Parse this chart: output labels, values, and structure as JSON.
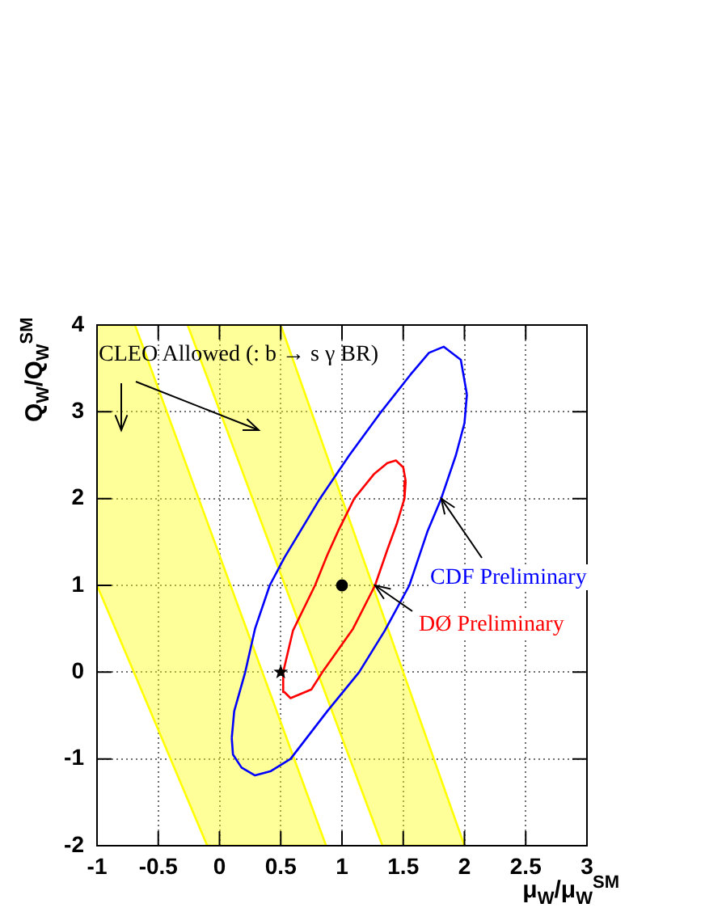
{
  "chart_data": {
    "type": "line",
    "xlabel": "μ$_{W}$/μ$_{W}$$^{SM}$",
    "ylabel": "Q$_{W}$/Q$_{W}$$^{SM}$",
    "xlim": [
      -1,
      3
    ],
    "ylim": [
      -2,
      4
    ],
    "xticks": [
      -1,
      -0.5,
      0,
      0.5,
      1,
      1.5,
      2,
      2.5,
      3
    ],
    "yticks": [
      -2,
      -1,
      0,
      1,
      2,
      3,
      4
    ],
    "grid": true,
    "annotations": [
      "CLEO Allowed (: b → s γ BR)"
    ],
    "series": [
      {
        "color": "#ffff00",
        "x": [
          -1,
          -0.69,
          -0.1,
          0.87
        ],
        "values": [
          4,
          4,
          1.73,
          -2
        ],
        "lower": [
          1,
          -0.03,
          -2,
          -2
        ],
        "upper": [
          4,
          4,
          1.73,
          -2
        ]
      },
      {
        "color": "#ffff00",
        "x": [
          -1,
          -0.69,
          -0.1,
          0.87
        ],
        "values": [
          1,
          -0.03,
          -2,
          -2
        ]
      },
      {
        "color": "#ffff00",
        "x": [
          -0.26,
          0.5,
          1.33,
          2
        ],
        "values": [
          4,
          4,
          0.68,
          -2
        ],
        "lower": [
          4,
          1.13,
          -2,
          -2
        ],
        "upper": [
          4,
          4,
          0.68,
          -2
        ]
      },
      {
        "color": "#ffff00",
        "x": [
          -0.26,
          0.5,
          1.33,
          2
        ],
        "values": [
          4,
          1.13,
          -2,
          -2
        ]
      },
      {
        "name": "CDF Preliminary",
        "color": "#0000ff",
        "x": [
          0.1,
          0.12,
          0.21,
          0.29,
          0.41,
          0.53,
          0.82,
          1.06,
          1.32,
          1.56,
          1.71,
          1.83,
          1.97,
          2.02,
          null,
          2.02,
          2.0,
          1.93,
          1.81,
          1.7,
          1.55,
          1.35,
          1.14,
          0.88,
          0.58,
          0.42,
          0.29,
          0.18,
          0.11,
          0.1
        ],
        "values": [
          -0.76,
          -0.45,
          0.0,
          0.5,
          1.0,
          1.32,
          2.0,
          2.5,
          3.0,
          3.43,
          3.68,
          3.75,
          3.6,
          3.2,
          null,
          3.2,
          2.87,
          2.5,
          2.0,
          1.63,
          1.0,
          0.48,
          0.0,
          -0.45,
          -1.0,
          -1.14,
          -1.19,
          -1.1,
          -0.95,
          -0.76
        ]
      },
      {
        "name": "DØ Preliminary",
        "color": "#ff0000",
        "x": [
          0.52,
          0.6,
          0.78,
          0.88,
          0.97,
          1.1,
          1.26,
          1.37,
          1.44,
          1.5,
          1.52,
          null,
          1.52,
          1.51,
          1.45,
          1.37,
          1.27,
          1.09,
          0.84,
          0.75,
          0.58,
          0.53,
          0.52
        ],
        "values": [
          0.0,
          0.48,
          1.0,
          1.35,
          1.63,
          2.0,
          2.28,
          2.41,
          2.44,
          2.36,
          2.2,
          null,
          2.2,
          2.0,
          1.72,
          1.41,
          1.0,
          0.5,
          0.0,
          -0.2,
          -0.3,
          -0.23,
          0.0
        ]
      },
      {
        "type": "scatter",
        "marker": "star",
        "color": "#000000",
        "x": [
          0.5
        ],
        "values": [
          0
        ]
      },
      {
        "type": "scatter",
        "marker": "circle",
        "color": "#000000",
        "x": [
          1
        ],
        "values": [
          1
        ]
      }
    ]
  }
}
